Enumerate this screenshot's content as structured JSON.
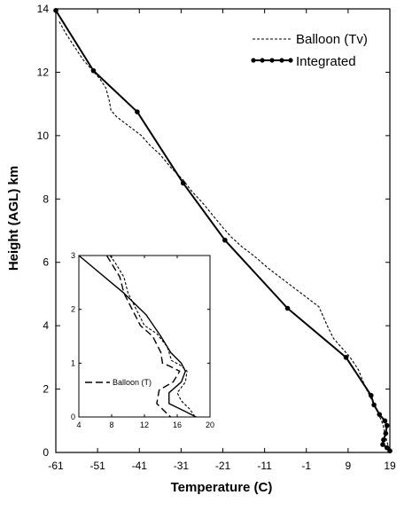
{
  "chart_data": [
    {
      "type": "line",
      "xlabel": "Temperature (C)",
      "ylabel": "Height (AGL) km",
      "xlim": [
        -61,
        19
      ],
      "ylim": [
        0,
        14
      ],
      "xticks": [
        -61,
        -51,
        -41,
        -31,
        -21,
        -11,
        -1,
        9,
        19
      ],
      "yticks": [
        0,
        2,
        4,
        6,
        8,
        10,
        12,
        14
      ],
      "grid": false,
      "legend_placement": "top-right",
      "series": [
        {
          "name": "Balloon (Tv)",
          "style": "dashed-fine",
          "points": [
            [
              -60.2,
              13.6
            ],
            [
              -58.5,
              13.2
            ],
            [
              -56.5,
              12.8
            ],
            [
              -54.5,
              12.4
            ],
            [
              -52.5,
              12.1
            ],
            [
              -50.5,
              11.8
            ],
            [
              -49.0,
              11.5
            ],
            [
              -48.2,
              11.1
            ],
            [
              -47.8,
              10.8
            ],
            [
              -46.5,
              10.6
            ],
            [
              -44.5,
              10.4
            ],
            [
              -42.5,
              10.2
            ],
            [
              -40.5,
              10.0
            ],
            [
              -38.5,
              9.7
            ],
            [
              -36.0,
              9.4
            ],
            [
              -33.5,
              9.0
            ],
            [
              -30.5,
              8.6
            ],
            [
              -28.5,
              8.25
            ],
            [
              -26.0,
              7.9
            ],
            [
              -23.5,
              7.5
            ],
            [
              -21.0,
              7.1
            ],
            [
              -19.0,
              6.8
            ],
            [
              -16.5,
              6.5
            ],
            [
              -13.5,
              6.2
            ],
            [
              -10.0,
              5.8
            ],
            [
              -7.0,
              5.5
            ],
            [
              -4.0,
              5.2
            ],
            [
              -1.0,
              4.9
            ],
            [
              2.0,
              4.6
            ],
            [
              4.0,
              4.0
            ],
            [
              5.5,
              3.6
            ],
            [
              7.5,
              3.3
            ],
            [
              9.5,
              3.0
            ],
            [
              11.5,
              2.6
            ],
            [
              13.0,
              2.1
            ],
            [
              14.5,
              1.7
            ],
            [
              16.0,
              1.3
            ],
            [
              17.3,
              0.9
            ],
            [
              18.0,
              0.5
            ],
            [
              18.6,
              0.2
            ],
            [
              19.0,
              0.0
            ]
          ]
        },
        {
          "name": "Integrated",
          "style": "solid-dots",
          "points": [
            [
              -61.0,
              13.95
            ],
            [
              -52.0,
              12.05
            ],
            [
              -41.5,
              10.75
            ],
            [
              -30.5,
              8.5
            ],
            [
              -20.5,
              6.7
            ],
            [
              -5.5,
              4.55
            ],
            [
              8.5,
              3.0
            ],
            [
              14.5,
              1.8
            ],
            [
              15.2,
              1.5
            ],
            [
              16.5,
              1.2
            ],
            [
              17.8,
              1.0
            ],
            [
              18.3,
              0.85
            ],
            [
              18.0,
              0.6
            ],
            [
              17.5,
              0.4
            ],
            [
              17.3,
              0.25
            ],
            [
              18.3,
              0.15
            ],
            [
              19.0,
              0.05
            ]
          ]
        }
      ]
    },
    {
      "type": "line",
      "xlim": [
        4,
        20
      ],
      "ylim": [
        0,
        3
      ],
      "xticks": [
        4,
        8,
        12,
        16,
        20
      ],
      "yticks": [
        0,
        1,
        2,
        3
      ],
      "annotations": [
        {
          "text": "Balloon (T)"
        }
      ],
      "series": [
        {
          "name": "Integrated",
          "style": "solid",
          "points": [
            [
              4.0,
              3.0
            ],
            [
              9.5,
              2.3
            ],
            [
              12.2,
              1.9
            ],
            [
              14.0,
              1.5
            ],
            [
              15.2,
              1.2
            ],
            [
              16.5,
              1.0
            ],
            [
              17.0,
              0.85
            ],
            [
              16.5,
              0.65
            ],
            [
              15.0,
              0.45
            ],
            [
              15.0,
              0.25
            ],
            [
              17.0,
              0.1
            ],
            [
              18.3,
              0.0
            ]
          ]
        },
        {
          "name": "Balloon (Tv)",
          "style": "dashed-fine",
          "points": [
            [
              7.8,
              3.0
            ],
            [
              8.5,
              2.85
            ],
            [
              9.5,
              2.6
            ],
            [
              10.0,
              2.3
            ],
            [
              11.0,
              2.0
            ],
            [
              12.0,
              1.7
            ],
            [
              13.5,
              1.55
            ],
            [
              14.8,
              1.3
            ],
            [
              15.3,
              1.05
            ],
            [
              16.5,
              0.95
            ],
            [
              17.2,
              0.85
            ],
            [
              17.0,
              0.65
            ],
            [
              16.0,
              0.45
            ],
            [
              16.5,
              0.3
            ],
            [
              17.5,
              0.15
            ],
            [
              18.2,
              0.0
            ]
          ]
        },
        {
          "name": "Balloon (T)",
          "style": "dashed",
          "points": [
            [
              7.4,
              3.0
            ],
            [
              8.0,
              2.85
            ],
            [
              9.0,
              2.6
            ],
            [
              9.5,
              2.3
            ],
            [
              10.5,
              2.0
            ],
            [
              11.5,
              1.7
            ],
            [
              13.0,
              1.5
            ],
            [
              14.0,
              1.2
            ],
            [
              14.2,
              1.0
            ],
            [
              15.0,
              0.95
            ],
            [
              16.3,
              0.85
            ],
            [
              15.5,
              0.65
            ],
            [
              13.8,
              0.5
            ],
            [
              13.5,
              0.25
            ],
            [
              14.5,
              0.1
            ],
            [
              15.2,
              0.0
            ]
          ]
        }
      ]
    }
  ]
}
